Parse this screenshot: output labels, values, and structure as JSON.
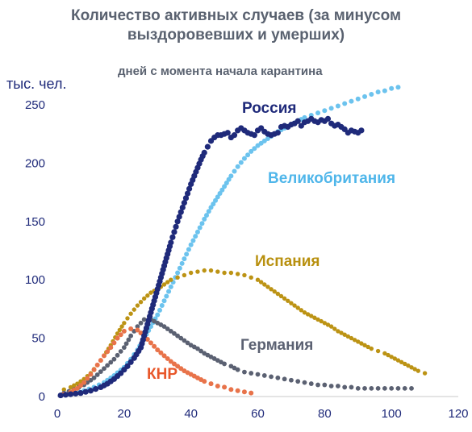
{
  "chart_data": {
    "type": "scatter",
    "title_lines": [
      "Количество активных случаев (за минусом",
      "выздоровевших и умерших)"
    ],
    "subtitle": "дней с момента начала карантина",
    "ylabel": "тыс. чел.",
    "xlabel": "",
    "xlim": [
      0,
      120
    ],
    "ylim": [
      0,
      250
    ],
    "xticks": [
      "0",
      "20",
      "40",
      "60",
      "80",
      "100",
      "120"
    ],
    "yticks": [
      "0",
      "50",
      "100",
      "150",
      "200",
      "250"
    ],
    "grid": false,
    "legend": "inline labels next to series",
    "series": [
      {
        "name": "Россия",
        "color": "#1f2a7a",
        "points": [
          [
            1,
            1
          ],
          [
            4,
            2
          ],
          [
            7,
            3
          ],
          [
            10,
            5
          ],
          [
            13,
            8
          ],
          [
            15,
            11
          ],
          [
            17,
            15
          ],
          [
            19,
            20
          ],
          [
            21,
            26
          ],
          [
            23,
            33
          ],
          [
            25,
            42
          ],
          [
            26,
            52
          ],
          [
            27,
            62
          ],
          [
            28,
            72
          ],
          [
            29,
            82
          ],
          [
            30,
            92
          ],
          [
            31,
            102
          ],
          [
            32,
            112
          ],
          [
            33,
            122
          ],
          [
            34,
            132
          ],
          [
            35,
            141
          ],
          [
            36,
            150
          ],
          [
            37,
            158
          ],
          [
            38,
            166
          ],
          [
            39,
            174
          ],
          [
            40,
            182
          ],
          [
            41,
            189
          ],
          [
            42,
            196
          ],
          [
            43,
            203
          ],
          [
            44,
            209
          ],
          [
            45,
            214
          ],
          [
            46,
            219
          ],
          [
            47,
            222
          ],
          [
            48,
            224
          ],
          [
            49,
            224
          ],
          [
            50,
            225
          ],
          [
            51,
            226
          ],
          [
            52,
            222
          ],
          [
            53,
            224
          ],
          [
            54,
            228
          ],
          [
            55,
            230
          ],
          [
            56,
            228
          ],
          [
            57,
            226
          ],
          [
            58,
            225
          ],
          [
            59,
            224
          ],
          [
            60,
            228
          ],
          [
            61,
            230
          ],
          [
            62,
            227
          ],
          [
            63,
            225
          ],
          [
            64,
            224
          ],
          [
            65,
            225
          ],
          [
            66,
            226
          ],
          [
            67,
            231
          ],
          [
            68,
            232
          ],
          [
            69,
            231
          ],
          [
            70,
            233
          ],
          [
            71,
            234
          ],
          [
            72,
            236
          ],
          [
            73,
            232
          ],
          [
            74,
            235
          ],
          [
            75,
            236
          ],
          [
            76,
            238
          ],
          [
            77,
            236
          ],
          [
            78,
            235
          ],
          [
            79,
            237
          ],
          [
            80,
            236
          ],
          [
            81,
            238
          ],
          [
            82,
            234
          ],
          [
            83,
            232
          ],
          [
            84,
            233
          ],
          [
            85,
            231
          ],
          [
            86,
            229
          ],
          [
            87,
            226
          ],
          [
            88,
            228
          ],
          [
            89,
            227
          ],
          [
            90,
            226
          ],
          [
            91,
            228
          ]
        ]
      },
      {
        "name": "Великобритания",
        "color": "#6cc3ee",
        "points": [
          [
            2,
            2
          ],
          [
            5,
            3
          ],
          [
            8,
            5
          ],
          [
            11,
            8
          ],
          [
            14,
            12
          ],
          [
            17,
            18
          ],
          [
            20,
            25
          ],
          [
            22,
            32
          ],
          [
            24,
            40
          ],
          [
            26,
            50
          ],
          [
            28,
            60
          ],
          [
            30,
            70
          ],
          [
            32,
            82
          ],
          [
            34,
            94
          ],
          [
            36,
            106
          ],
          [
            38,
            118
          ],
          [
            40,
            130
          ],
          [
            42,
            141
          ],
          [
            44,
            152
          ],
          [
            46,
            162
          ],
          [
            48,
            171
          ],
          [
            50,
            180
          ],
          [
            52,
            189
          ],
          [
            54,
            197
          ],
          [
            56,
            204
          ],
          [
            58,
            210
          ],
          [
            60,
            215
          ],
          [
            62,
            219
          ],
          [
            64,
            223
          ],
          [
            66,
            227
          ],
          [
            68,
            230
          ],
          [
            70,
            233
          ],
          [
            72,
            236
          ],
          [
            74,
            239
          ],
          [
            76,
            241
          ],
          [
            78,
            243
          ],
          [
            80,
            245
          ],
          [
            82,
            247
          ],
          [
            84,
            249
          ],
          [
            86,
            251
          ],
          [
            88,
            253
          ],
          [
            90,
            255
          ],
          [
            92,
            257
          ],
          [
            94,
            259
          ],
          [
            96,
            261
          ],
          [
            98,
            262
          ],
          [
            100,
            264
          ],
          [
            102,
            265
          ]
        ]
      },
      {
        "name": "Испания",
        "color": "#bc9314",
        "points": [
          [
            2,
            6
          ],
          [
            4,
            8
          ],
          [
            6,
            11
          ],
          [
            8,
            15
          ],
          [
            10,
            20
          ],
          [
            12,
            27
          ],
          [
            14,
            35
          ],
          [
            16,
            44
          ],
          [
            18,
            54
          ],
          [
            20,
            63
          ],
          [
            22,
            71
          ],
          [
            24,
            78
          ],
          [
            26,
            84
          ],
          [
            28,
            89
          ],
          [
            30,
            92
          ],
          [
            32,
            96
          ],
          [
            34,
            100
          ],
          [
            36,
            102
          ],
          [
            38,
            104
          ],
          [
            40,
            106
          ],
          [
            42,
            107
          ],
          [
            44,
            108
          ],
          [
            46,
            108
          ],
          [
            48,
            107
          ],
          [
            50,
            106
          ],
          [
            52,
            106
          ],
          [
            54,
            105
          ],
          [
            56,
            104
          ],
          [
            58,
            102
          ],
          [
            60,
            100
          ],
          [
            62,
            96
          ],
          [
            64,
            92
          ],
          [
            66,
            88
          ],
          [
            68,
            84
          ],
          [
            70,
            80
          ],
          [
            72,
            76
          ],
          [
            74,
            72
          ],
          [
            76,
            69
          ],
          [
            78,
            66
          ],
          [
            80,
            63
          ],
          [
            82,
            60
          ],
          [
            84,
            56
          ],
          [
            86,
            53
          ],
          [
            88,
            50
          ],
          [
            90,
            47
          ],
          [
            92,
            44
          ],
          [
            94,
            41
          ],
          [
            96,
            39
          ],
          [
            98,
            37
          ],
          [
            100,
            34
          ],
          [
            102,
            31
          ],
          [
            104,
            28
          ],
          [
            106,
            25
          ],
          [
            108,
            22
          ],
          [
            110,
            20
          ]
        ]
      },
      {
        "name": "Германия",
        "color": "#5b6172",
        "points": [
          [
            2,
            3
          ],
          [
            5,
            6
          ],
          [
            8,
            10
          ],
          [
            11,
            16
          ],
          [
            14,
            24
          ],
          [
            17,
            32
          ],
          [
            20,
            42
          ],
          [
            22,
            52
          ],
          [
            24,
            60
          ],
          [
            26,
            66
          ],
          [
            28,
            66
          ],
          [
            30,
            63
          ],
          [
            32,
            60
          ],
          [
            34,
            56
          ],
          [
            36,
            52
          ],
          [
            38,
            48
          ],
          [
            40,
            44
          ],
          [
            42,
            41
          ],
          [
            44,
            37
          ],
          [
            46,
            34
          ],
          [
            48,
            31
          ],
          [
            50,
            28
          ],
          [
            52,
            26
          ],
          [
            54,
            23
          ],
          [
            56,
            21
          ],
          [
            58,
            20
          ],
          [
            60,
            19
          ],
          [
            62,
            18
          ],
          [
            64,
            17
          ],
          [
            66,
            16
          ],
          [
            68,
            15
          ],
          [
            70,
            14
          ],
          [
            72,
            13
          ],
          [
            74,
            12
          ],
          [
            76,
            11
          ],
          [
            78,
            10
          ],
          [
            80,
            10
          ],
          [
            82,
            9
          ],
          [
            84,
            9
          ],
          [
            86,
            8
          ],
          [
            88,
            8
          ],
          [
            90,
            7
          ],
          [
            92,
            7
          ],
          [
            94,
            7
          ],
          [
            96,
            7
          ],
          [
            98,
            7
          ],
          [
            100,
            7
          ],
          [
            102,
            7
          ],
          [
            104,
            7
          ],
          [
            106,
            7
          ]
        ]
      },
      {
        "name": "КНР",
        "color": "#e8734a",
        "points": [
          [
            2,
            2
          ],
          [
            4,
            4
          ],
          [
            6,
            7
          ],
          [
            8,
            12
          ],
          [
            10,
            19
          ],
          [
            12,
            27
          ],
          [
            14,
            35
          ],
          [
            16,
            42
          ],
          [
            18,
            50
          ],
          [
            20,
            56
          ],
          [
            22,
            58
          ],
          [
            24,
            57
          ],
          [
            26,
            52
          ],
          [
            28,
            46
          ],
          [
            30,
            40
          ],
          [
            32,
            35
          ],
          [
            34,
            30
          ],
          [
            36,
            26
          ],
          [
            38,
            22
          ],
          [
            40,
            19
          ],
          [
            42,
            16
          ],
          [
            44,
            13
          ],
          [
            46,
            11
          ],
          [
            48,
            9
          ],
          [
            50,
            8
          ],
          [
            52,
            6
          ],
          [
            54,
            5
          ],
          [
            56,
            4
          ],
          [
            58,
            3
          ]
        ]
      }
    ],
    "label_colors": {
      "Россия": "#1f2a7a",
      "Великобритания": "#4fb6ea",
      "Испания": "#b8900f",
      "Германия": "#5b6172",
      "КНР": "#e8572a"
    }
  }
}
